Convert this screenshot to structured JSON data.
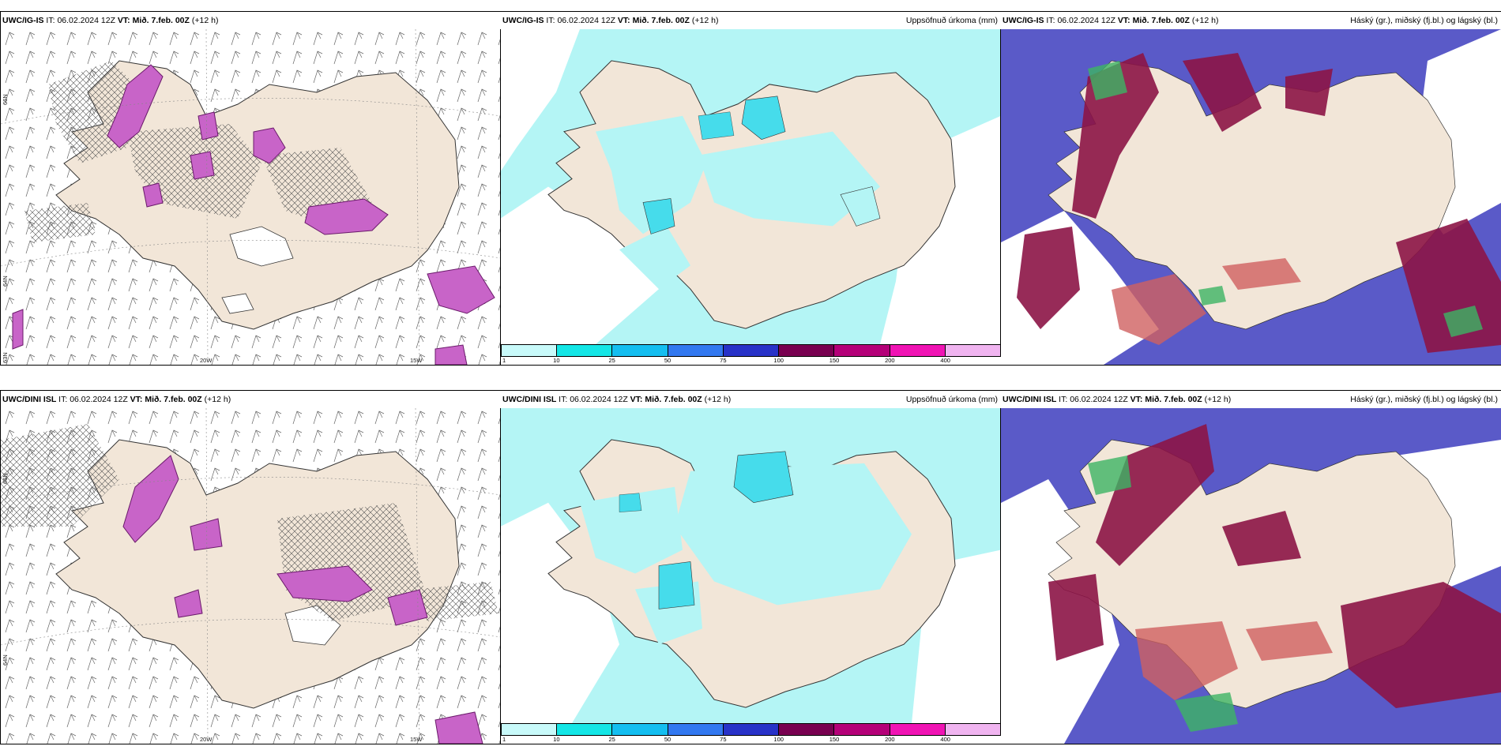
{
  "rows": [
    {
      "model": "UWC/IG-IS",
      "it_label": "IT:",
      "it_value": "06.02.2024 12Z",
      "vt_label": "VT:",
      "vt_value": "Mið. 7.feb. 00Z",
      "lead": "(+12 h)"
    },
    {
      "model": "UWC/DINI ISL",
      "it_label": "IT:",
      "it_value": "06.02.2024 12Z",
      "vt_label": "VT:",
      "vt_value": "Mið. 7.feb. 00Z",
      "lead": "(+12 h)"
    }
  ],
  "precip_title": "Uppsöfnuð úrkoma (mm)",
  "cloud_title": "Háský (gr.), miðský (fj.bl.) og lágský (bl.)",
  "axis_labels": {
    "lon_20w": "20W",
    "lon_15w": "15W",
    "lat_66n": "66N",
    "lat_64n": "64N",
    "lat_63n_top": "63N"
  },
  "colorbar": {
    "ticks": [
      "1",
      "10",
      "25",
      "50",
      "75",
      "100",
      "150",
      "200",
      "400"
    ],
    "colors": [
      "#c8fafa",
      "#14e6e6",
      "#14bef0",
      "#3278f0",
      "#2832c8",
      "#780050",
      "#b40078",
      "#f014b4",
      "#f0b4f0"
    ]
  },
  "colors": {
    "land": "#f2e6d8",
    "precip_light": "#b4f5f5",
    "precip_mid": "#46dceb",
    "snow_magenta": "#c864c8",
    "high_cloud": "#5a5ac8",
    "mid_cloud": "#8c1446",
    "low_cloud": "#3cb464"
  }
}
